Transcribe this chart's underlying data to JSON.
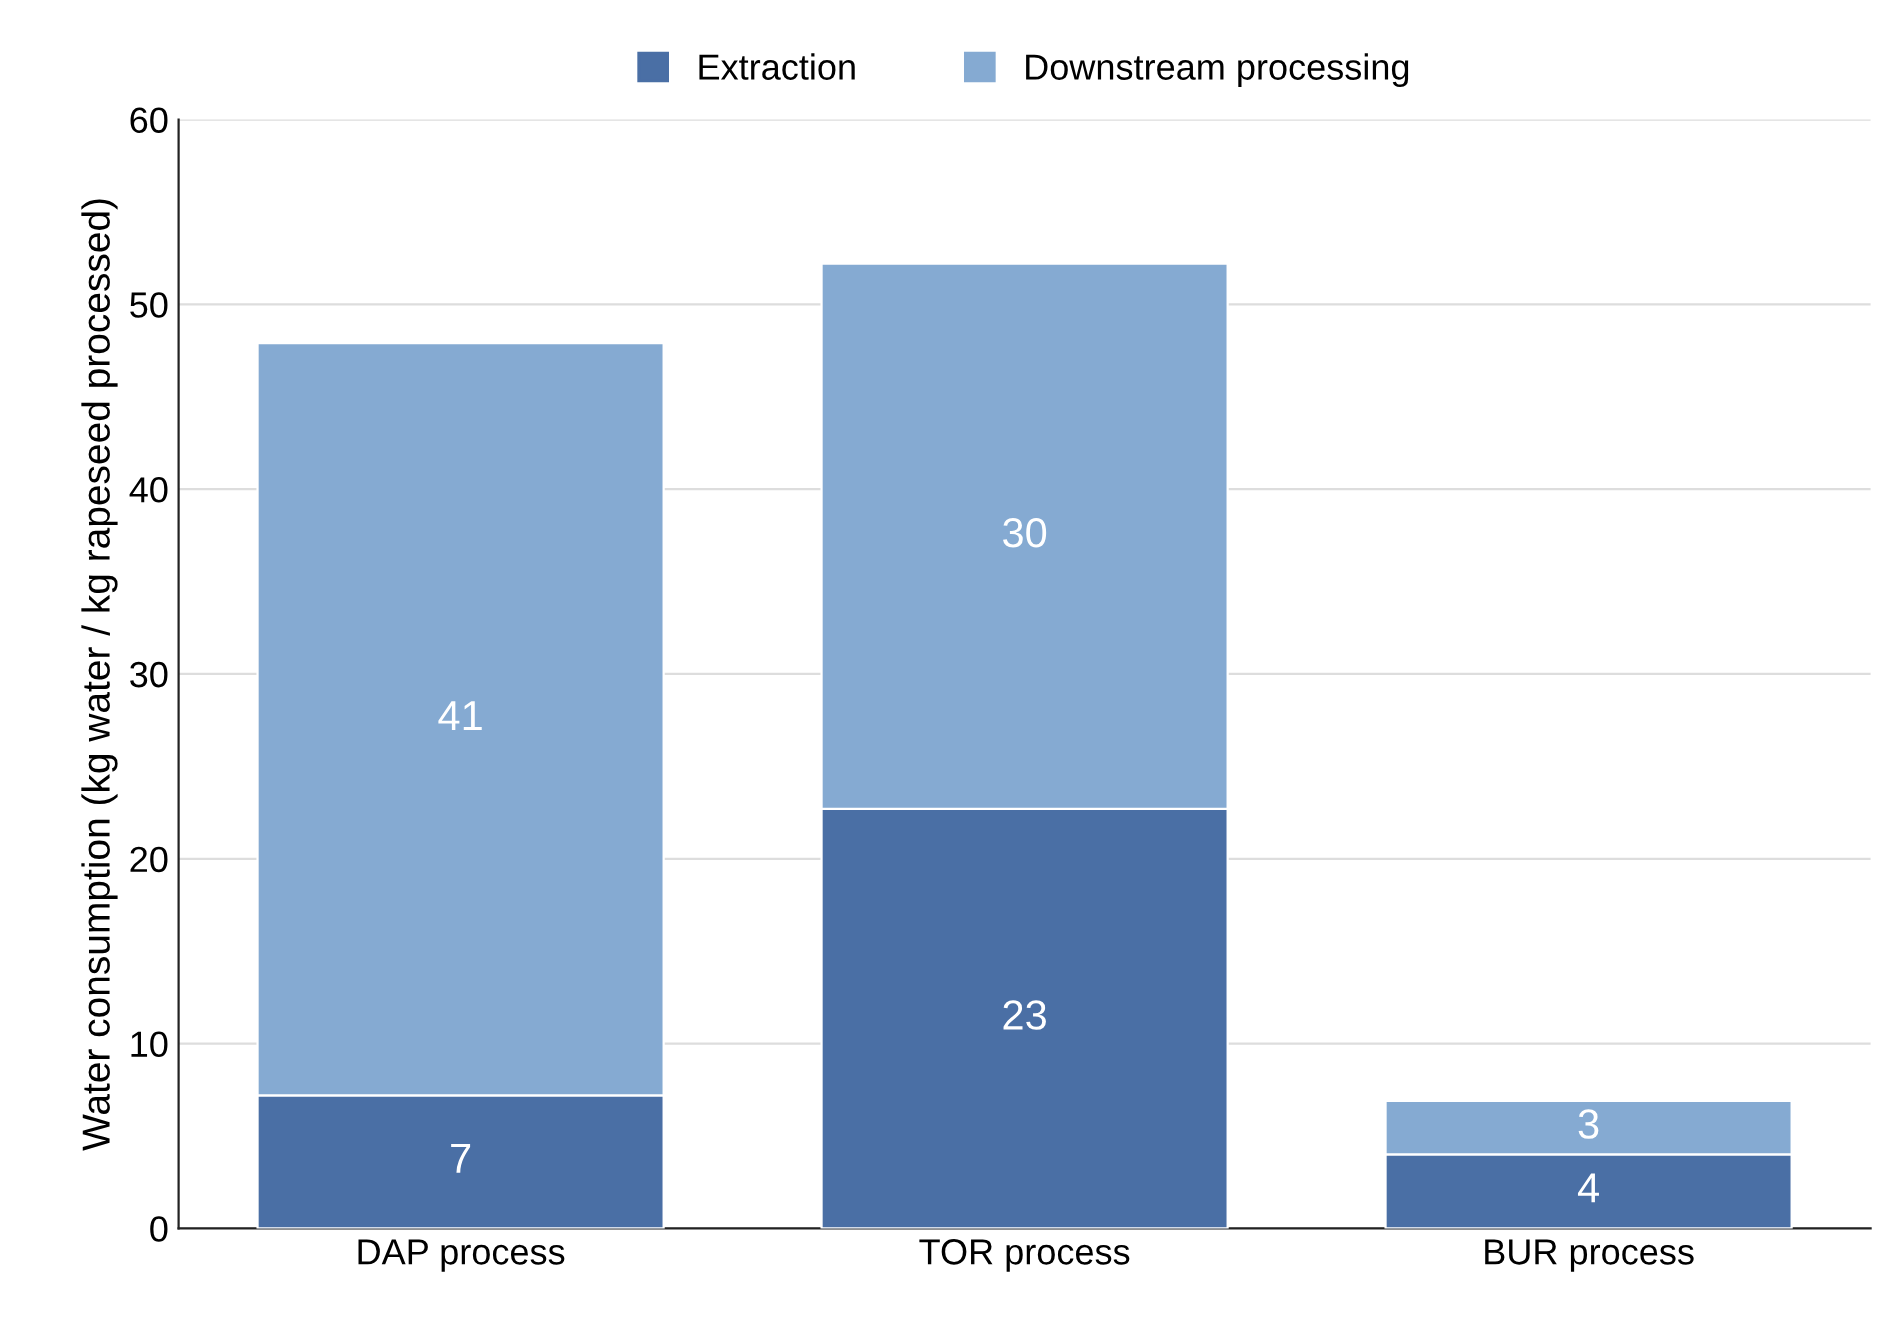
{
  "chart_data": {
    "type": "bar",
    "stacked": true,
    "ylabel": "Water consumption (kg water / kg rapeseed processed)",
    "categories": [
      "DAP process",
      "TOR process",
      "BUR process"
    ],
    "series": [
      {
        "name": "Extraction",
        "color": "#4a6fa5",
        "values": [
          7.2,
          22.7,
          4.0
        ],
        "value_labels": [
          "7",
          "23",
          "4"
        ]
      },
      {
        "name": "Downstream processing",
        "color": "#85aad2",
        "values": [
          40.7,
          29.5,
          2.9
        ],
        "value_labels": [
          "41",
          "30",
          "3"
        ]
      }
    ],
    "ylim": [
      0,
      60
    ],
    "yticks": [
      0,
      10,
      20,
      30,
      40,
      50,
      60
    ],
    "grid": "y",
    "legend": "top"
  }
}
